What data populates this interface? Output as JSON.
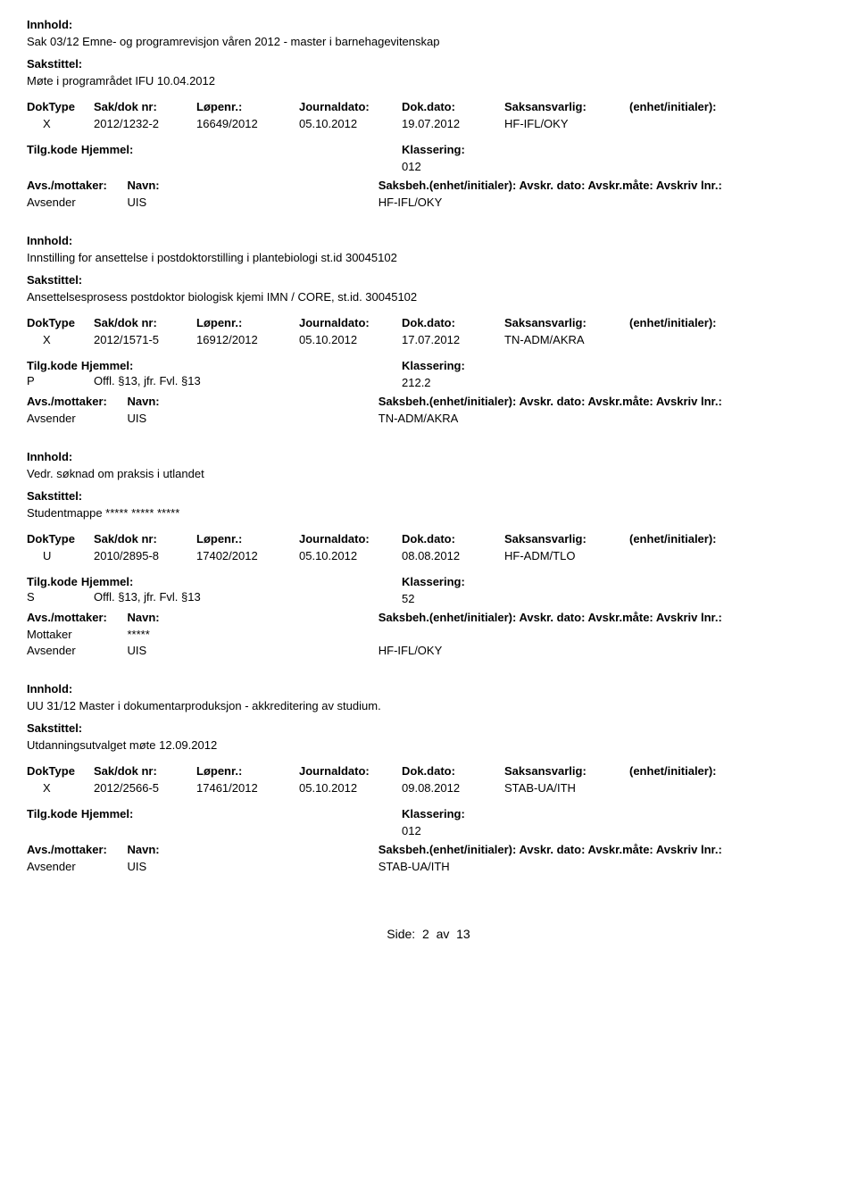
{
  "labels": {
    "innhold": "Innhold:",
    "sakstittel": "Sakstittel:",
    "doktype": "DokType",
    "sakdok": "Sak/dok nr:",
    "lopenr": "Løpenr.:",
    "journaldato": "Journaldato:",
    "dokdato": "Dok.dato:",
    "saksansvarlig": "Saksansvarlig:",
    "enhet": "(enhet/initialer):",
    "tilgkode": "Tilg.kode",
    "hjemmel": "Hjemmel:",
    "klassering": "Klassering:",
    "avsmottaker": "Avs./mottaker:",
    "navn": "Navn:",
    "saksbeh_full": "Saksbeh.(enhet/initialer): Avskr. dato: Avskr.måte: Avskriv lnr.:",
    "avsender": "Avsender",
    "mottaker": "Mottaker",
    "uis": "UIS",
    "masked": "*****"
  },
  "records": [
    {
      "innhold": "Sak 03/12 Emne- og programrevisjon våren 2012 - master i barnehagevitenskap",
      "sakstittel": "Møte i programrådet IFU 10.04.2012",
      "doktype": "X",
      "sakdok": "2012/1232-2",
      "lopenr": "16649/2012",
      "journaldato": "05.10.2012",
      "dokdato": "19.07.2012",
      "saksansvarlig": "HF-IFL/OKY",
      "tilgkode": "",
      "hjemmel": "",
      "klassering": "012",
      "parties": [
        {
          "role": "Avsender",
          "name": "UIS",
          "saksbeh": "HF-IFL/OKY"
        }
      ]
    },
    {
      "innhold": "Innstilling for ansettelse i postdoktorstilling i plantebiologi st.id 30045102",
      "sakstittel": "Ansettelsesprosess postdoktor biologisk kjemi IMN / CORE, st.id. 30045102",
      "doktype": "X",
      "sakdok": "2012/1571-5",
      "lopenr": "16912/2012",
      "journaldato": "05.10.2012",
      "dokdato": "17.07.2012",
      "saksansvarlig": "TN-ADM/AKRA",
      "tilgkode": "P",
      "hjemmel": "Offl. §13, jfr. Fvl. §13",
      "klassering": "212.2",
      "parties": [
        {
          "role": "Avsender",
          "name": "UIS",
          "saksbeh": "TN-ADM/AKRA"
        }
      ]
    },
    {
      "innhold": "Vedr. søknad om praksis i utlandet",
      "sakstittel": "Studentmappe ***** ***** *****",
      "doktype": "U",
      "sakdok": "2010/2895-8",
      "lopenr": "17402/2012",
      "journaldato": "05.10.2012",
      "dokdato": "08.08.2012",
      "saksansvarlig": "HF-ADM/TLO",
      "tilgkode": "S",
      "hjemmel": "Offl. §13, jfr. Fvl. §13",
      "klassering": "52",
      "parties": [
        {
          "role": "Mottaker",
          "name": "*****",
          "saksbeh": ""
        },
        {
          "role": "Avsender",
          "name": "UIS",
          "saksbeh": "HF-IFL/OKY"
        }
      ]
    },
    {
      "innhold": "UU 31/12 Master i dokumentarproduksjon - akkreditering av studium.",
      "sakstittel": "Utdanningsutvalget møte 12.09.2012",
      "doktype": "X",
      "sakdok": "2012/2566-5",
      "lopenr": "17461/2012",
      "journaldato": "05.10.2012",
      "dokdato": "09.08.2012",
      "saksansvarlig": "STAB-UA/ITH",
      "tilgkode": "",
      "hjemmel": "",
      "klassering": "012",
      "parties": [
        {
          "role": "Avsender",
          "name": "UIS",
          "saksbeh": "STAB-UA/ITH"
        }
      ]
    }
  ],
  "footer": {
    "prefix": "Side:",
    "page": "2",
    "sep": "av",
    "total": "13"
  }
}
